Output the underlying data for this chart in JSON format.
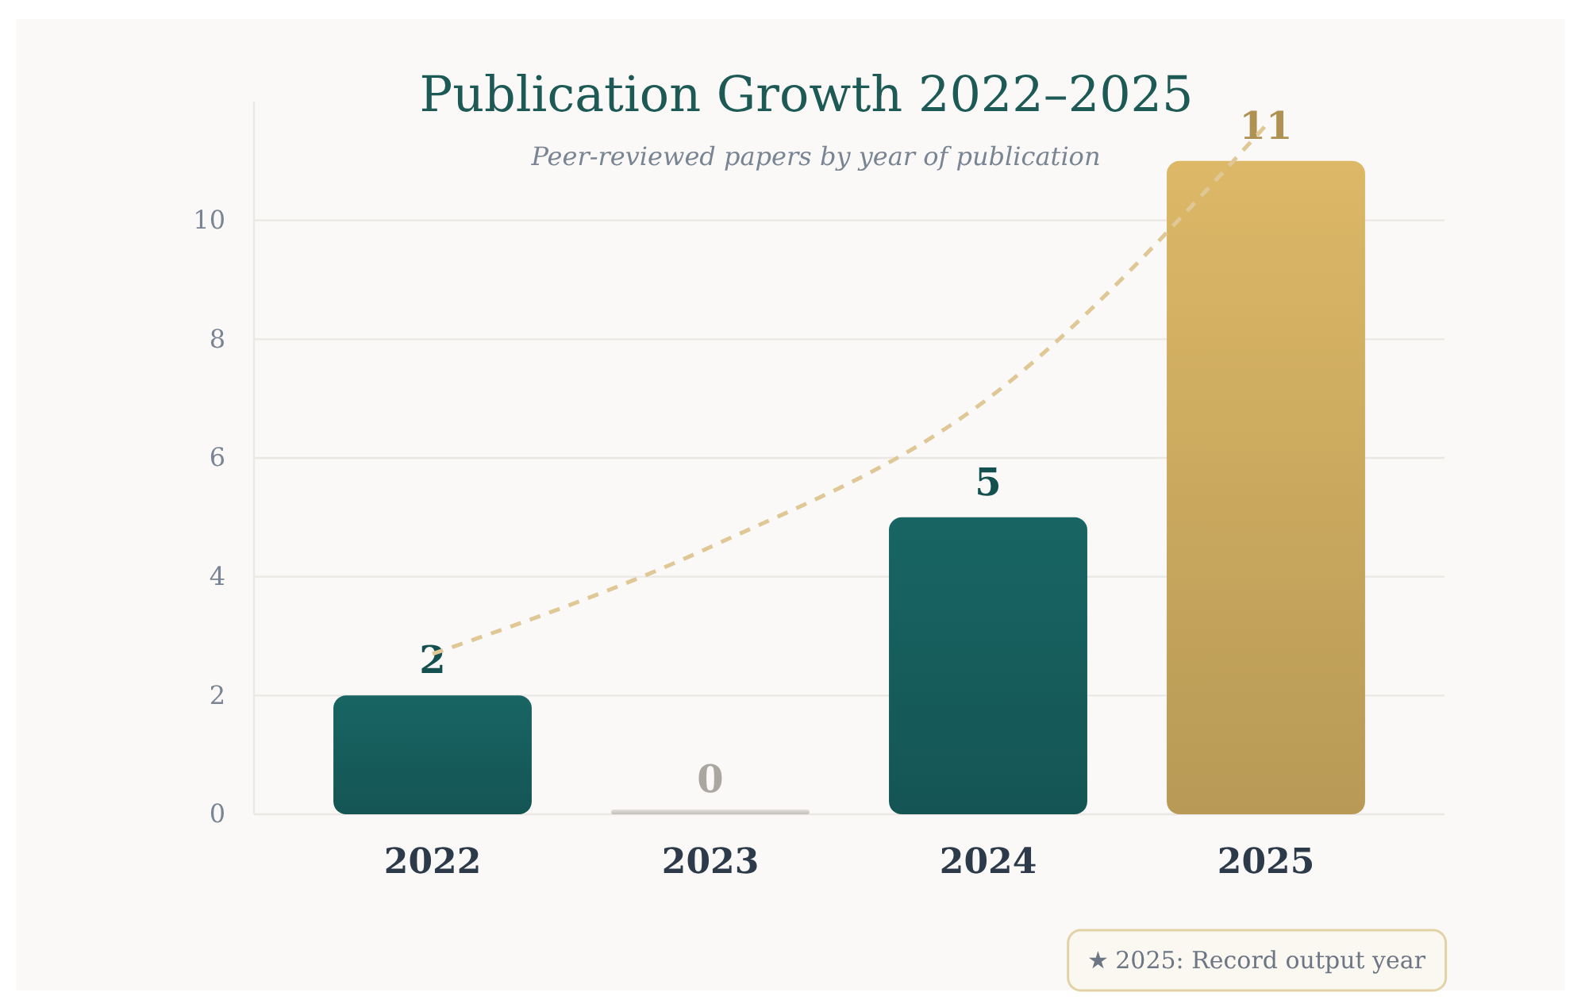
{
  "chart_data": {
    "type": "bar",
    "title": "Publication Growth 2022–2025",
    "subtitle": "Peer-reviewed papers by year of publication",
    "categories": [
      "2022",
      "2023",
      "2024",
      "2025"
    ],
    "series": [
      {
        "values": [
          2,
          0,
          5,
          11
        ],
        "value_labels": [
          "2",
          "0",
          "5",
          "11"
        ],
        "colors": [
          "#17605f",
          "#d9d6d2",
          "#17605f",
          "#d1ae62"
        ]
      },
      {
        "type": "line",
        "color": "#e0c896",
        "values": [
          2.7,
          4.5,
          7.0,
          11.6
        ],
        "line_style": "dashed",
        "marker": "none"
      }
    ],
    "ylim": [
      0,
      12
    ],
    "yticks": [
      0,
      2,
      4,
      6,
      8,
      10
    ],
    "grid": "y",
    "annotations": [
      "★ 2025: Record output year"
    ]
  }
}
